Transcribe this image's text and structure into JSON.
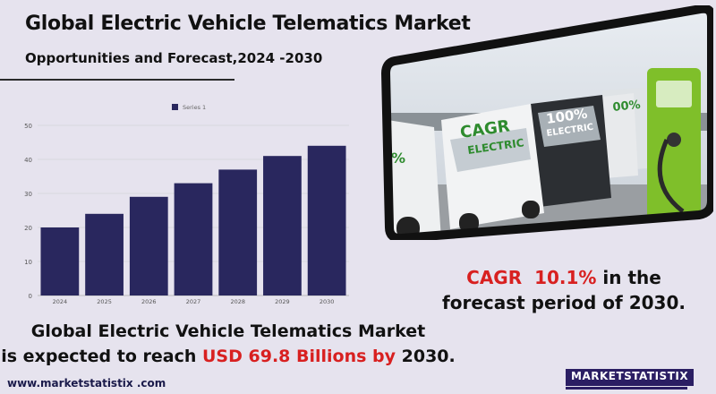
{
  "header": {
    "title": "Global Electric Vehicle Telematics Market",
    "subtitle": "Opportunities and Forecast,2024 -2030"
  },
  "chart_data": {
    "type": "bar",
    "categories": [
      "2024",
      "2025",
      "2026",
      "2027",
      "2028",
      "2029",
      "2030"
    ],
    "series": [
      {
        "name": "Series 1",
        "values": [
          20,
          24,
          29,
          33,
          37,
          41,
          44
        ]
      }
    ],
    "title": "",
    "xlabel": "",
    "ylabel": "",
    "ylim": [
      0,
      50
    ],
    "yticks": [
      0,
      10,
      20,
      30,
      40,
      50
    ],
    "grid": true,
    "legend_position": "top-center",
    "bar_color": "#29275e"
  },
  "photo": {
    "van_labels": [
      "%",
      "ELECTRIC",
      "100%",
      "ELECTRIC",
      "00%"
    ],
    "accent_color": "#7fbf2a"
  },
  "cagr": {
    "label": "CAGR",
    "value": "10.1%",
    "suffix": "in the",
    "line2": "forecast period of 2030."
  },
  "summary": {
    "line1": "Global Electric Vehicle Telematics Market",
    "prefix": "is expected to reach",
    "amount": "USD  69.8 Billions by",
    "year": "2030."
  },
  "footer": {
    "url": "www.marketstatistix .com",
    "logo_text": "MARKETSTATISTIX"
  },
  "colors": {
    "accent_red": "#d82020",
    "brand": "#2b1e63"
  }
}
